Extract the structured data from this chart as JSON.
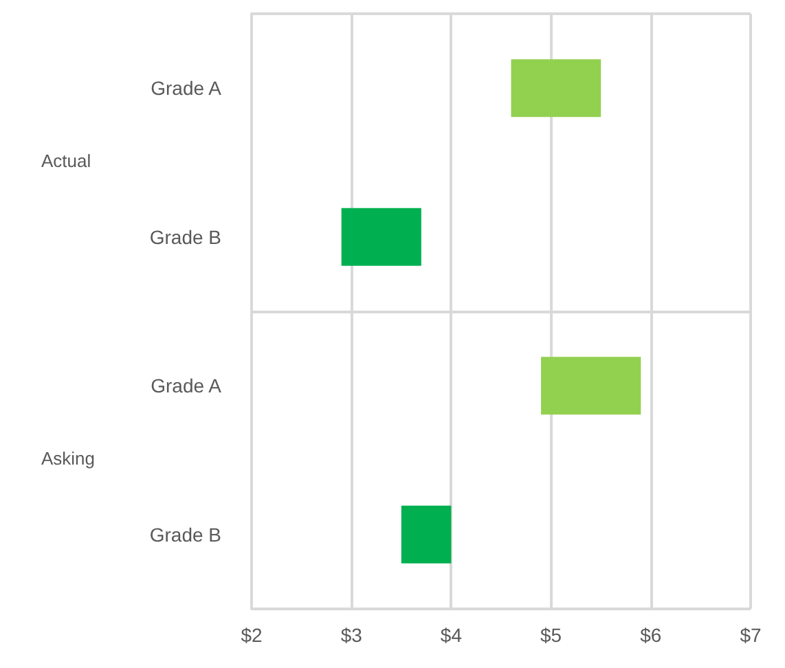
{
  "chart_data": {
    "type": "bar",
    "orientation": "horizontal",
    "categories": [
      "Grade A",
      "Grade B",
      "Grade A",
      "Grade B"
    ],
    "base": [
      4.6,
      2.9,
      4.9,
      3.5
    ],
    "values": [
      0.9,
      0.8,
      1.0,
      0.5
    ],
    "colors": [
      "#92d050",
      "#00b050",
      "#92d050",
      "#00b050"
    ],
    "annotations": [
      "Actual",
      "Asking"
    ],
    "xlim": [
      2,
      7
    ],
    "xticks": [
      {
        "value": 2,
        "label": "$2"
      },
      {
        "value": 3,
        "label": "$3"
      },
      {
        "value": 4,
        "label": "$4"
      },
      {
        "value": 5,
        "label": "$5"
      },
      {
        "value": 6,
        "label": "$6"
      },
      {
        "value": 7,
        "label": "$7"
      }
    ],
    "grid": "x"
  }
}
